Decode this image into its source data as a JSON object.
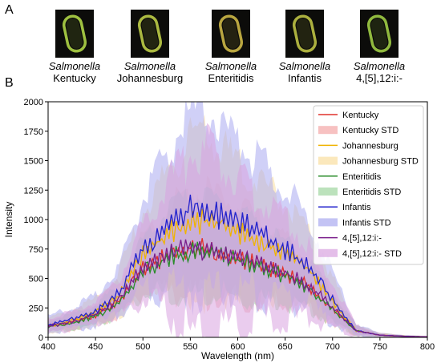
{
  "panel_labels": {
    "a": "A",
    "b": "B"
  },
  "micrographs": [
    {
      "genus": "Salmonella",
      "strain": "Kentucky",
      "tint": "#b8e04a"
    },
    {
      "genus": "Salmonella",
      "strain": "Johannesburg",
      "tint": "#c8d84a"
    },
    {
      "genus": "Salmonella",
      "strain": "Enteritidis",
      "tint": "#d8c24a"
    },
    {
      "genus": "Salmonella",
      "strain": "Infantis",
      "tint": "#c8cc48"
    },
    {
      "genus": "Salmonella",
      "strain": "4,[5],12:i:-",
      "tint": "#a8d848"
    }
  ],
  "chart_data": {
    "type": "line",
    "title": "",
    "xlabel": "Wavelength (nm)",
    "ylabel": "Intensity",
    "xlim": [
      400,
      800
    ],
    "ylim": [
      0,
      2000
    ],
    "xticks": [
      400,
      450,
      500,
      550,
      600,
      650,
      700,
      750,
      800
    ],
    "yticks": [
      0,
      250,
      500,
      750,
      1000,
      1250,
      1500,
      1750,
      2000
    ],
    "grid": false,
    "legend_position": "top-right",
    "legend": [
      "Kentucky",
      "Kentucky STD",
      "Johannesburg",
      "Johannesburg STD",
      "Enteritidis",
      "Enteritidis STD",
      "Infantis",
      "Infantis STD",
      "4,[5],12:i:-",
      "4,[5],12:i:- STD"
    ],
    "x": [
      400,
      425,
      450,
      475,
      500,
      525,
      550,
      575,
      600,
      625,
      650,
      675,
      700,
      725,
      750,
      775,
      800
    ],
    "series": [
      {
        "name": "Kentucky",
        "color": "#e0312b",
        "std_color": "#f4a6a6",
        "values": [
          100,
          140,
          200,
          330,
          620,
          740,
          810,
          790,
          720,
          650,
          570,
          460,
          260,
          60,
          20,
          10,
          5
        ],
        "std": [
          60,
          70,
          90,
          140,
          250,
          350,
          450,
          430,
          380,
          330,
          280,
          210,
          140,
          40,
          15,
          8,
          5
        ]
      },
      {
        "name": "Johannesburg",
        "color": "#f0b400",
        "std_color": "#f9dea0",
        "values": [
          100,
          150,
          220,
          380,
          750,
          920,
          1050,
          1040,
          950,
          850,
          760,
          610,
          320,
          60,
          20,
          10,
          5
        ],
        "std": [
          60,
          80,
          110,
          180,
          320,
          480,
          650,
          620,
          530,
          450,
          380,
          300,
          180,
          40,
          15,
          8,
          5
        ]
      },
      {
        "name": "Enteritidis",
        "color": "#2a8c2a",
        "std_color": "#9fd6a0",
        "values": [
          95,
          130,
          190,
          310,
          600,
          720,
          780,
          770,
          700,
          630,
          550,
          440,
          250,
          60,
          20,
          10,
          5
        ],
        "std": [
          55,
          65,
          85,
          130,
          230,
          330,
          420,
          410,
          360,
          310,
          260,
          200,
          130,
          40,
          15,
          8,
          5
        ]
      },
      {
        "name": "Infantis",
        "color": "#2222cc",
        "std_color": "#a9a9f0",
        "values": [
          110,
          160,
          230,
          400,
          800,
          980,
          1170,
          1130,
          1040,
          920,
          800,
          640,
          340,
          60,
          20,
          10,
          5
        ],
        "std": [
          70,
          90,
          130,
          200,
          380,
          560,
          750,
          720,
          640,
          560,
          470,
          370,
          220,
          50,
          15,
          8,
          5
        ]
      },
      {
        "name": "4,[5],12:i:-",
        "color": "#7a1f8c",
        "std_color": "#d9a3e0",
        "values": [
          100,
          140,
          205,
          340,
          640,
          760,
          800,
          790,
          730,
          660,
          580,
          470,
          270,
          60,
          20,
          10,
          5
        ],
        "std": [
          65,
          75,
          100,
          160,
          320,
          520,
          800,
          760,
          640,
          520,
          420,
          320,
          180,
          45,
          15,
          8,
          5
        ]
      }
    ]
  }
}
